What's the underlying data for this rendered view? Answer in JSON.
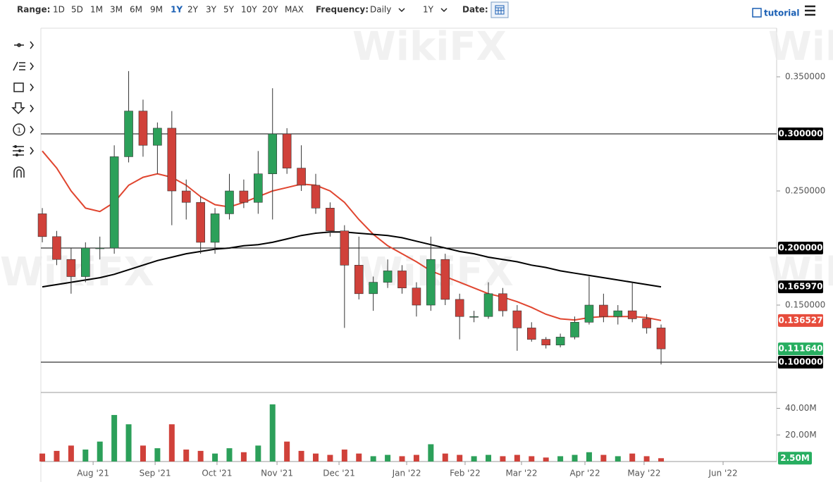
{
  "toolbar": {
    "range_label": "Range:",
    "ranges": [
      "1D",
      "5D",
      "1M",
      "3M",
      "6M",
      "9M",
      "1Y",
      "2Y",
      "3Y",
      "5Y",
      "10Y",
      "20Y",
      "MAX"
    ],
    "active_range_index": 6,
    "frequency_label": "Frequency:",
    "frequency": "Daily",
    "period": "1Y",
    "date_label": "Date:",
    "tutorial": "tutorial"
  },
  "watermark": "WikiFX",
  "chart_data": {
    "type": "candlestick",
    "open": [
      0.23,
      0.21,
      0.19,
      0.175,
      0.2,
      0.2,
      0.28,
      0.32,
      0.29,
      0.305,
      0.25,
      0.24,
      0.205,
      0.23,
      0.25,
      0.24,
      0.265,
      0.3,
      0.27,
      0.255,
      0.235,
      0.215,
      0.185,
      0.16,
      0.17,
      0.18,
      0.165,
      0.15,
      0.19,
      0.155,
      0.14,
      0.14,
      0.16,
      0.145,
      0.13,
      0.12,
      0.115,
      0.122,
      0.135,
      0.15,
      0.14,
      0.145,
      0.138,
      0.13
    ],
    "high": [
      0.235,
      0.215,
      0.2,
      0.205,
      0.21,
      0.29,
      0.355,
      0.33,
      0.31,
      0.32,
      0.26,
      0.245,
      0.235,
      0.265,
      0.26,
      0.285,
      0.34,
      0.305,
      0.29,
      0.265,
      0.24,
      0.22,
      0.21,
      0.175,
      0.19,
      0.185,
      0.17,
      0.21,
      0.195,
      0.16,
      0.145,
      0.17,
      0.165,
      0.15,
      0.135,
      0.122,
      0.125,
      0.14,
      0.175,
      0.16,
      0.15,
      0.17,
      0.142,
      0.133
    ],
    "low": [
      0.205,
      0.185,
      0.16,
      0.17,
      0.19,
      0.195,
      0.275,
      0.28,
      0.265,
      0.22,
      0.225,
      0.195,
      0.195,
      0.225,
      0.235,
      0.23,
      0.225,
      0.265,
      0.25,
      0.23,
      0.21,
      0.13,
      0.155,
      0.145,
      0.165,
      0.16,
      0.14,
      0.145,
      0.15,
      0.12,
      0.135,
      0.138,
      0.14,
      0.11,
      0.118,
      0.112,
      0.113,
      0.12,
      0.133,
      0.135,
      0.133,
      0.135,
      0.125,
      0.098
    ],
    "close": [
      0.21,
      0.19,
      0.175,
      0.2,
      0.2,
      0.28,
      0.32,
      0.29,
      0.305,
      0.25,
      0.24,
      0.205,
      0.23,
      0.25,
      0.24,
      0.265,
      0.3,
      0.27,
      0.255,
      0.235,
      0.215,
      0.185,
      0.16,
      0.17,
      0.18,
      0.165,
      0.15,
      0.19,
      0.155,
      0.14,
      0.14,
      0.16,
      0.145,
      0.13,
      0.12,
      0.115,
      0.122,
      0.135,
      0.15,
      0.14,
      0.145,
      0.138,
      0.13,
      0.11164
    ],
    "volume": [
      6000000,
      8000000,
      12000000,
      9000000,
      15000000,
      35000000,
      28000000,
      12000000,
      10000000,
      28000000,
      9000000,
      8000000,
      6000000,
      10000000,
      7000000,
      12000000,
      43000000,
      15000000,
      8000000,
      6000000,
      5000000,
      9000000,
      6000000,
      4000000,
      5000000,
      4000000,
      5000000,
      13000000,
      6000000,
      5000000,
      4000000,
      5000000,
      4000000,
      5000000,
      4000000,
      3000000,
      4000000,
      5000000,
      7000000,
      5000000,
      4000000,
      6000000,
      4000000,
      2500000
    ],
    "up_color": "#2ca05a",
    "down_color": "#d0413a",
    "lines": [
      {
        "color": "#e0452f",
        "values": [
          0.285,
          0.27,
          0.25,
          0.235,
          0.232,
          0.24,
          0.255,
          0.262,
          0.265,
          0.262,
          0.255,
          0.245,
          0.238,
          0.236,
          0.24,
          0.245,
          0.25,
          0.253,
          0.256,
          0.255,
          0.25,
          0.24,
          0.225,
          0.212,
          0.202,
          0.195,
          0.188,
          0.18,
          0.175,
          0.17,
          0.165,
          0.16,
          0.157,
          0.153,
          0.148,
          0.142,
          0.138,
          0.137,
          0.139,
          0.14,
          0.14,
          0.14,
          0.139,
          0.136527
        ]
      },
      {
        "color": "#000000",
        "values": [
          0.166,
          0.168,
          0.17,
          0.172,
          0.174,
          0.177,
          0.181,
          0.185,
          0.189,
          0.192,
          0.195,
          0.197,
          0.199,
          0.2,
          0.202,
          0.203,
          0.205,
          0.208,
          0.211,
          0.213,
          0.214,
          0.214,
          0.213,
          0.212,
          0.211,
          0.209,
          0.206,
          0.203,
          0.2,
          0.197,
          0.195,
          0.192,
          0.19,
          0.188,
          0.185,
          0.183,
          0.18,
          0.178,
          0.176,
          0.174,
          0.172,
          0.17,
          0.168,
          0.16597
        ]
      }
    ],
    "xlim": [
      -0.1,
      51.03
    ],
    "xticks": [
      {
        "value": 3.53,
        "label": "Aug '21"
      },
      {
        "value": 7.84,
        "label": "Sep '21"
      },
      {
        "value": 12.14,
        "label": "Oct '21"
      },
      {
        "value": 16.31,
        "label": "Nov '21"
      },
      {
        "value": 20.62,
        "label": "Dec '21"
      },
      {
        "value": 25.32,
        "label": "Jan '22"
      },
      {
        "value": 29.38,
        "label": "Feb '22"
      },
      {
        "value": 33.3,
        "label": "Mar '22"
      },
      {
        "value": 37.71,
        "label": "Apr '22"
      },
      {
        "value": 41.82,
        "label": "May '22"
      },
      {
        "value": 47.31,
        "label": "Jun '22"
      }
    ],
    "ylim": [
      0.0747,
      0.3926
    ],
    "yticks": [
      {
        "value": 0.35,
        "label": "0.350000"
      },
      {
        "value": 0.25,
        "label": "0.250000"
      },
      {
        "value": 0.15,
        "label": "0.150000"
      }
    ],
    "hlines": [
      {
        "value": 0.3,
        "label": "0.300000"
      },
      {
        "value": 0.2,
        "label": "0.200000"
      },
      {
        "value": 0.1,
        "label": "0.100000"
      }
    ],
    "price_labels": [
      {
        "value": 0.16597,
        "label": "0.165970",
        "color": "#000000"
      },
      {
        "value": 0.136527,
        "label": "0.136527",
        "color": "#e74c3c"
      },
      {
        "value": 0.11164,
        "label": "0.111640",
        "color": "#27ae60"
      }
    ],
    "volume_ylim": [
      0,
      51400000
    ],
    "volume_yticks": [
      {
        "value": 40000000,
        "label": "40.00M"
      },
      {
        "value": 20000000,
        "label": "20.00M"
      }
    ],
    "volume_box": {
      "value": 2500000,
      "label": "2.50M",
      "color": "#27ae60"
    }
  }
}
